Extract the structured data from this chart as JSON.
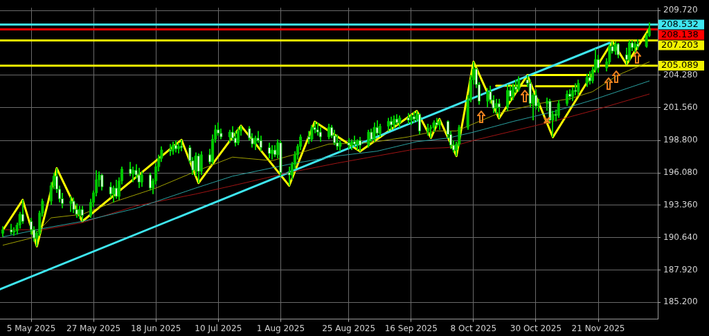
{
  "chart_data": {
    "type": "candlestick",
    "color": "#00c800",
    "colors": [
      "#00c800",
      "#ffffff",
      "#00c800",
      "#00c800",
      "#00c800",
      "#ffffff",
      "#ffffff",
      "#ffffff",
      "#00c800",
      "#00c800",
      "#00c800",
      "#00c800",
      "#00c800",
      "#ffffff",
      "#ffffff",
      "#ffffff",
      "#00c800",
      "#ffffff",
      "#ffffff",
      "#00c800",
      "#ffffff",
      "#00c800",
      "#00c800",
      "#00c800",
      "#00c800",
      "#ffffff",
      "#ffffff",
      "#00c800",
      "#ffffff",
      "#00c800",
      "#00c800",
      "#ffffff",
      "#00c800",
      "#ffffff",
      "#ffffff",
      "#00c800",
      "#ffffff",
      "#00c800",
      "#00c800",
      "#00c800",
      "#00c800",
      "#ffffff",
      "#00c800",
      "#ffffff",
      "#00c800",
      "#ffffff",
      "#ffffff",
      "#ffffff",
      "#00c800",
      "#ffffff",
      "#00c800",
      "#ffffff",
      "#00c800",
      "#00c800",
      "#ffffff",
      "#ffffff",
      "#00c800",
      "#ffffff",
      "#ffffff",
      "#00c800",
      "#00c800",
      "#ffffff",
      "#ffffff",
      "#00c800",
      "#ffffff",
      "#ffffff",
      "#ffffff",
      "#00c800",
      "#ffffff",
      "#00c800",
      "#ffffff",
      "#ffffff",
      "#00c800",
      "#00c800",
      "#00c800",
      "#00c800",
      "#ffffff",
      "#00c800",
      "#ffffff",
      "#ffffff",
      "#ffffff",
      "#00c800",
      "#ffffff",
      "#ffffff",
      "#ffffff",
      "#00c800",
      "#ffffff",
      "#00c800",
      "#ffffff",
      "#00c800",
      "#ffffff",
      "#00c800",
      "#ffffff",
      "#00c800",
      "#ffffff",
      "#00c800",
      "#00c800",
      "#ffffff",
      "#00c800",
      "#ffffff",
      "#00c800",
      "#ffffff",
      "#00c800",
      "#ffffff",
      "#00c800",
      "#ffffff",
      "#00c800",
      "#00c800",
      "#00c800",
      "#ffffff",
      "#00c800",
      "#ffffff",
      "#ffffff",
      "#ffffff",
      "#00c800",
      "#00c800",
      "#00c800",
      "#00c800",
      "#00c800",
      "#ffffff",
      "#ffffff",
      "#00c800",
      "#ffffff",
      "#ffffff",
      "#00c800",
      "#ffffff",
      "#00c800",
      "#ffffff",
      "#00c800",
      "#ffffff",
      "#00c800",
      "#ffffff",
      "#ffffff",
      "#00c800",
      "#ffffff",
      "#00c800",
      "#00c800",
      "#ffffff",
      "#00c800",
      "#ffffff",
      "#00c800",
      "#00c800",
      "#ffffff",
      "#00c800",
      "#ffffff",
      "#00c800",
      "#00c800",
      "#ffffff",
      "#00c800",
      "#00c800",
      "#ffffff",
      "#00c800",
      "#00c800",
      "#ffffff",
      "#00c800",
      "#ffffff",
      "#ffffff",
      "#00c800",
      "#ffffff",
      "#00c800",
      "#ffffff",
      "#00c800",
      "#00c800"
    ],
    "x": [
      "2025-04-25",
      "2025-04-28",
      "2025-04-29",
      "2025-04-30",
      "2025-05-01",
      "2025-05-02",
      "2025-05-05",
      "2025-05-06",
      "2025-05-07",
      "2025-05-08",
      "2025-05-09",
      "2025-05-12",
      "2025-05-13",
      "2025-05-14",
      "2025-05-15",
      "2025-05-16",
      "2025-05-19",
      "2025-05-20",
      "2025-05-21",
      "2025-05-22",
      "2025-05-23",
      "2025-05-26",
      "2025-05-27",
      "2025-05-28",
      "2025-05-29",
      "2025-05-30",
      "2025-06-02",
      "2025-06-03",
      "2025-06-04",
      "2025-06-05",
      "2025-06-06",
      "2025-06-09",
      "2025-06-10",
      "2025-06-11",
      "2025-06-12",
      "2025-06-13",
      "2025-06-16",
      "2025-06-17",
      "2025-06-18",
      "2025-06-19",
      "2025-06-20",
      "2025-06-23",
      "2025-06-24",
      "2025-06-25",
      "2025-06-26",
      "2025-06-27",
      "2025-06-30",
      "2025-07-01",
      "2025-07-02",
      "2025-07-03",
      "2025-07-04",
      "2025-07-07",
      "2025-07-08",
      "2025-07-09",
      "2025-07-10",
      "2025-07-11",
      "2025-07-14",
      "2025-07-15",
      "2025-07-16",
      "2025-07-17",
      "2025-07-18",
      "2025-07-21",
      "2025-07-22",
      "2025-07-23",
      "2025-07-24",
      "2025-07-25",
      "2025-07-28",
      "2025-07-29",
      "2025-07-30",
      "2025-07-31",
      "2025-08-01",
      "2025-08-04",
      "2025-08-05",
      "2025-08-06",
      "2025-08-07",
      "2025-08-08",
      "2025-08-11",
      "2025-08-12",
      "2025-08-13",
      "2025-08-14",
      "2025-08-15",
      "2025-08-18",
      "2025-08-19",
      "2025-08-20",
      "2025-08-21",
      "2025-08-22",
      "2025-08-25",
      "2025-08-26",
      "2025-08-27",
      "2025-08-28",
      "2025-08-29",
      "2025-09-01",
      "2025-09-02",
      "2025-09-03",
      "2025-09-04",
      "2025-09-05",
      "2025-09-08",
      "2025-09-09",
      "2025-09-10",
      "2025-09-11",
      "2025-09-12",
      "2025-09-15",
      "2025-09-16",
      "2025-09-17",
      "2025-09-18",
      "2025-09-19",
      "2025-09-22",
      "2025-09-23",
      "2025-09-24",
      "2025-09-25",
      "2025-09-26",
      "2025-09-29",
      "2025-09-30",
      "2025-10-01",
      "2025-10-02",
      "2025-10-03",
      "2025-10-06",
      "2025-10-07",
      "2025-10-08",
      "2025-10-09",
      "2025-10-10",
      "2025-10-13",
      "2025-10-14",
      "2025-10-15",
      "2025-10-16",
      "2025-10-17",
      "2025-10-20",
      "2025-10-21",
      "2025-10-22",
      "2025-10-23",
      "2025-10-24",
      "2025-10-27",
      "2025-10-28",
      "2025-10-29",
      "2025-10-30",
      "2025-10-31",
      "2025-11-03",
      "2025-11-04",
      "2025-11-05",
      "2025-11-06",
      "2025-11-07",
      "2025-11-10",
      "2025-11-11",
      "2025-11-12",
      "2025-11-13",
      "2025-11-14",
      "2025-11-17",
      "2025-11-18",
      "2025-11-19",
      "2025-11-20",
      "2025-11-21",
      "2025-11-24",
      "2025-11-25",
      "2025-11-26",
      "2025-11-27",
      "2025-11-28",
      "2025-12-01",
      "2025-12-02",
      "2025-12-03",
      "2025-12-04",
      "2025-12-05",
      "2025-12-08",
      "2025-12-09"
    ],
    "ohlc": [
      [
        191.0,
        191.6,
        190.7,
        191.3
      ],
      [
        191.3,
        191.8,
        190.9,
        191.1
      ],
      [
        191.1,
        191.5,
        190.8,
        191.2
      ],
      [
        191.2,
        191.9,
        190.9,
        191.7
      ],
      [
        191.7,
        192.8,
        191.4,
        192.6
      ],
      [
        192.6,
        193.81,
        191.8,
        192.0
      ],
      [
        192.0,
        192.3,
        190.9,
        191.3
      ],
      [
        191.3,
        191.6,
        190.3,
        190.6
      ],
      [
        190.6,
        191.2,
        189.9,
        191.0
      ],
      [
        191.0,
        192.9,
        190.8,
        192.7
      ],
      [
        192.7,
        193.9,
        192.4,
        193.7
      ],
      [
        193.7,
        195.3,
        193.4,
        195.0
      ],
      [
        195.0,
        196.1,
        194.7,
        195.8
      ],
      [
        195.8,
        196.47,
        194.4,
        194.7
      ],
      [
        194.7,
        195.0,
        193.6,
        193.9
      ],
      [
        193.9,
        194.4,
        193.1,
        193.5
      ],
      [
        193.5,
        194.1,
        192.8,
        193.7
      ],
      [
        193.7,
        194.0,
        192.7,
        193.0
      ],
      [
        193.0,
        193.5,
        192.3,
        192.6
      ],
      [
        192.6,
        193.3,
        192.2,
        193.0
      ],
      [
        193.0,
        193.3,
        192.0,
        192.5
      ],
      [
        192.5,
        193.9,
        192.3,
        193.6
      ],
      [
        193.6,
        194.6,
        193.2,
        194.4
      ],
      [
        194.4,
        196.3,
        194.1,
        195.5
      ],
      [
        195.5,
        196.2,
        194.9,
        195.9
      ],
      [
        195.9,
        196.0,
        194.6,
        194.9
      ],
      [
        194.9,
        195.3,
        194.0,
        194.3
      ],
      [
        194.3,
        195.0,
        193.6,
        194.8
      ],
      [
        194.8,
        195.5,
        193.9,
        194.1
      ],
      [
        194.1,
        195.7,
        193.8,
        195.4
      ],
      [
        195.4,
        196.6,
        195.1,
        196.4
      ],
      [
        196.4,
        197.0,
        195.8,
        196.0
      ],
      [
        196.0,
        196.6,
        195.3,
        196.3
      ],
      [
        196.3,
        196.8,
        195.6,
        195.9
      ],
      [
        195.9,
        196.5,
        194.8,
        195.3
      ],
      [
        195.3,
        196.2,
        194.9,
        195.9
      ],
      [
        195.9,
        196.1,
        194.6,
        194.8
      ],
      [
        194.8,
        195.6,
        194.3,
        195.4
      ],
      [
        195.4,
        196.9,
        195.1,
        196.6
      ],
      [
        196.6,
        197.6,
        196.2,
        197.3
      ],
      [
        197.3,
        198.3,
        197.0,
        198.0
      ],
      [
        198.0,
        198.5,
        197.5,
        197.9
      ],
      [
        197.9,
        198.7,
        197.6,
        198.4
      ],
      [
        198.4,
        198.8,
        197.8,
        198.1
      ],
      [
        198.1,
        198.6,
        197.7,
        198.3
      ],
      [
        198.3,
        198.85,
        197.9,
        198.2
      ],
      [
        198.2,
        198.4,
        196.9,
        197.1
      ],
      [
        197.1,
        197.4,
        195.9,
        196.3
      ],
      [
        196.3,
        197.8,
        195.8,
        197.5
      ],
      [
        197.5,
        197.7,
        195.22,
        196.2
      ],
      [
        196.2,
        197.9,
        195.9,
        197.6
      ],
      [
        197.6,
        198.1,
        196.8,
        197.0
      ],
      [
        197.0,
        199.3,
        196.8,
        198.9
      ],
      [
        198.9,
        200.1,
        198.6,
        199.7
      ],
      [
        199.7,
        200.3,
        199.2,
        199.4
      ],
      [
        199.4,
        199.8,
        198.9,
        199.1
      ],
      [
        199.1,
        199.7,
        198.6,
        199.5
      ],
      [
        199.5,
        200.0,
        198.8,
        199.0
      ],
      [
        199.0,
        199.6,
        198.3,
        198.6
      ],
      [
        198.6,
        199.9,
        198.4,
        199.6
      ],
      [
        199.6,
        200.04,
        199.2,
        199.8
      ],
      [
        199.8,
        200.0,
        198.8,
        199.0
      ],
      [
        199.0,
        199.4,
        198.2,
        198.5
      ],
      [
        198.5,
        199.2,
        198.0,
        199.0
      ],
      [
        199.0,
        199.6,
        198.6,
        198.8
      ],
      [
        198.8,
        199.2,
        197.9,
        198.2
      ],
      [
        198.2,
        198.6,
        197.3,
        197.7
      ],
      [
        197.7,
        198.4,
        197.2,
        198.0
      ],
      [
        198.0,
        198.4,
        197.4,
        197.6
      ],
      [
        197.6,
        198.9,
        197.3,
        198.6
      ],
      [
        198.6,
        198.8,
        195.8,
        196.1
      ],
      [
        196.1,
        196.6,
        195.0,
        195.9
      ],
      [
        195.9,
        197.0,
        195.5,
        196.8
      ],
      [
        196.8,
        197.9,
        196.4,
        197.6
      ],
      [
        197.6,
        198.5,
        197.2,
        198.3
      ],
      [
        198.3,
        199.3,
        198.0,
        199.1
      ],
      [
        199.1,
        199.6,
        198.5,
        198.9
      ],
      [
        198.9,
        200.1,
        198.7,
        199.9
      ],
      [
        199.9,
        200.38,
        199.4,
        199.7
      ],
      [
        199.7,
        200.3,
        199.2,
        199.5
      ],
      [
        199.5,
        199.9,
        198.7,
        199.1
      ],
      [
        199.1,
        200.2,
        198.9,
        199.9
      ],
      [
        199.9,
        200.1,
        199.0,
        199.2
      ],
      [
        199.2,
        199.7,
        198.4,
        198.6
      ],
      [
        198.6,
        199.3,
        198.0,
        198.3
      ],
      [
        198.3,
        198.8,
        197.9,
        198.6
      ],
      [
        198.6,
        199.0,
        198.1,
        198.4
      ],
      [
        198.4,
        198.9,
        198.0,
        198.7
      ],
      [
        198.7,
        199.2,
        198.3,
        198.5
      ],
      [
        198.5,
        198.9,
        198.0,
        198.8
      ],
      [
        198.8,
        199.1,
        197.88,
        198.4
      ],
      [
        198.4,
        199.7,
        198.2,
        199.5
      ],
      [
        199.5,
        199.8,
        198.7,
        198.9
      ],
      [
        198.9,
        200.3,
        198.7,
        199.9
      ],
      [
        199.9,
        200.5,
        199.2,
        199.4
      ],
      [
        199.4,
        200.2,
        199.1,
        200.0
      ],
      [
        200.0,
        200.7,
        199.6,
        200.4
      ],
      [
        200.4,
        200.8,
        199.7,
        200.1
      ],
      [
        200.1,
        200.9,
        199.8,
        200.6
      ],
      [
        200.6,
        201.0,
        200.1,
        200.3
      ],
      [
        200.3,
        200.9,
        199.9,
        200.7
      ],
      [
        200.7,
        201.1,
        200.2,
        200.5
      ],
      [
        200.5,
        201.0,
        200.1,
        200.8
      ],
      [
        200.8,
        201.2,
        200.3,
        200.6
      ],
      [
        200.6,
        201.28,
        200.4,
        201.0
      ],
      [
        201.0,
        201.1,
        199.3,
        199.6
      ],
      [
        199.6,
        200.2,
        199.2,
        199.8
      ],
      [
        199.8,
        200.1,
        199.02,
        199.9
      ],
      [
        199.9,
        200.5,
        199.5,
        200.3
      ],
      [
        200.3,
        200.7,
        199.9,
        200.1
      ],
      [
        200.1,
        200.6,
        199.7,
        200.4
      ],
      [
        200.4,
        200.5,
        199.0,
        199.3
      ],
      [
        199.3,
        199.6,
        198.1,
        198.4
      ],
      [
        198.4,
        198.8,
        197.8,
        198.0
      ],
      [
        198.0,
        198.7,
        197.49,
        198.5
      ],
      [
        198.5,
        200.1,
        198.3,
        199.9
      ],
      [
        199.9,
        202.6,
        199.7,
        202.2
      ],
      [
        202.2,
        204.3,
        202.0,
        203.9
      ],
      [
        203.9,
        205.42,
        203.5,
        204.8
      ],
      [
        204.8,
        204.9,
        203.2,
        203.5
      ],
      [
        203.5,
        203.7,
        201.8,
        202.1
      ],
      [
        202.1,
        203.2,
        201.6,
        202.9
      ],
      [
        202.9,
        203.4,
        201.9,
        202.2
      ],
      [
        202.2,
        202.6,
        201.1,
        201.5
      ],
      [
        201.5,
        202.3,
        201.0,
        201.9
      ],
      [
        201.9,
        202.3,
        200.66,
        201.6
      ],
      [
        201.6,
        203.5,
        201.3,
        203.0
      ],
      [
        203.0,
        203.4,
        202.1,
        202.5
      ],
      [
        202.5,
        203.6,
        202.2,
        203.3
      ],
      [
        203.3,
        203.9,
        202.8,
        203.1
      ],
      [
        203.1,
        204.2,
        202.9,
        203.9
      ],
      [
        203.9,
        204.28,
        203.3,
        203.6
      ],
      [
        203.6,
        203.9,
        201.6,
        201.9
      ],
      [
        201.9,
        202.8,
        200.5,
        202.6
      ],
      [
        202.6,
        203.1,
        201.4,
        201.7
      ],
      [
        201.7,
        202.3,
        201.2,
        201.9
      ],
      [
        201.9,
        202.4,
        201.3,
        202.1
      ],
      [
        202.1,
        202.3,
        200.2,
        200.5
      ],
      [
        200.5,
        201.3,
        199.07,
        201.0
      ],
      [
        201.0,
        201.4,
        200.4,
        200.9
      ],
      [
        200.9,
        202.2,
        200.7,
        201.9
      ],
      [
        201.9,
        203.0,
        201.7,
        202.7
      ],
      [
        202.7,
        203.1,
        202.2,
        202.5
      ],
      [
        202.5,
        203.3,
        202.1,
        203.0
      ],
      [
        203.0,
        203.6,
        202.6,
        202.9
      ],
      [
        202.9,
        203.9,
        202.6,
        203.6
      ],
      [
        203.6,
        204.4,
        203.3,
        204.1
      ],
      [
        204.1,
        204.6,
        203.5,
        203.8
      ],
      [
        203.8,
        205.0,
        203.6,
        204.7
      ],
      [
        204.7,
        206.5,
        204.5,
        205.6
      ],
      [
        205.6,
        206.0,
        204.5,
        204.9
      ],
      [
        204.9,
        205.7,
        204.6,
        205.4
      ],
      [
        205.4,
        206.9,
        205.2,
        206.7
      ],
      [
        206.7,
        207.12,
        206.1,
        206.3
      ],
      [
        206.3,
        207.1,
        206.0,
        206.9
      ],
      [
        206.9,
        207.0,
        205.7,
        206.0
      ],
      [
        206.0,
        206.6,
        205.19,
        205.6
      ],
      [
        205.6,
        207.2,
        205.4,
        207.0
      ],
      [
        207.0,
        207.2,
        206.3,
        206.6
      ],
      [
        206.6,
        207.1,
        206.2,
        206.9
      ],
      [
        206.9,
        207.3,
        206.4,
        206.7
      ],
      [
        206.7,
        207.8,
        206.6,
        207.6
      ],
      [
        207.6,
        208.72,
        207.5,
        208.2
      ]
    ],
    "series": [
      {
        "type": "line",
        "color": "#a0a000",
        "x": [
          "2025-04-25",
          "2025-05-05",
          "2025-05-12",
          "2025-05-23",
          "2025-06-04",
          "2025-06-18",
          "2025-07-02",
          "2025-07-15",
          "2025-07-29",
          "2025-08-07",
          "2025-08-18",
          "2025-09-01",
          "2025-09-15",
          "2025-09-25",
          "2025-10-02",
          "2025-10-08",
          "2025-10-17",
          "2025-10-31",
          "2025-11-11",
          "2025-11-19",
          "2025-11-28",
          "2025-12-09"
        ],
        "values": [
          190.0,
          190.6,
          192.3,
          192.6,
          193.7,
          194.8,
          196.2,
          197.4,
          197.1,
          197.7,
          198.5,
          198.6,
          199.1,
          199.6,
          199.6,
          200.2,
          201.1,
          201.9,
          202.3,
          202.9,
          204.3,
          205.4
        ]
      },
      {
        "type": "line",
        "color": "#2aa0a0",
        "x": [
          "2025-04-25",
          "2025-05-09",
          "2025-05-23",
          "2025-06-11",
          "2025-07-02",
          "2025-07-15",
          "2025-08-04",
          "2025-08-21",
          "2025-09-04",
          "2025-09-18",
          "2025-09-29",
          "2025-10-08",
          "2025-10-22",
          "2025-11-05",
          "2025-11-19",
          "2025-12-09"
        ],
        "values": [
          190.7,
          191.4,
          192.0,
          193.1,
          194.8,
          195.8,
          196.8,
          197.5,
          197.9,
          198.7,
          199.0,
          199.5,
          200.4,
          201.2,
          202.2,
          203.8
        ]
      },
      {
        "type": "line",
        "color": "#a01414",
        "x": [
          "2025-04-25",
          "2025-05-09",
          "2025-05-23",
          "2025-06-11",
          "2025-07-02",
          "2025-07-15",
          "2025-08-04",
          "2025-08-21",
          "2025-09-04",
          "2025-09-18",
          "2025-09-29",
          "2025-10-08",
          "2025-10-22",
          "2025-11-05",
          "2025-11-19",
          "2025-12-09"
        ],
        "values": [
          191.3,
          191.3,
          191.9,
          193.3,
          194.3,
          195.0,
          196.1,
          196.9,
          197.5,
          198.1,
          198.2,
          198.8,
          199.6,
          200.4,
          201.3,
          202.7
        ]
      },
      {
        "type": "line",
        "color": "#3ee6f0",
        "x": [
          "2025-04-24",
          "2025-11-25"
        ],
        "values": [
          186.3,
          207.0
        ]
      },
      {
        "type": "line",
        "color": "#ffff00",
        "x": [
          "2025-04-25",
          "2025-05-02",
          "2025-05-07",
          "2025-05-14",
          "2025-05-23",
          "2025-06-27",
          "2025-07-03",
          "2025-07-18",
          "2025-08-04",
          "2025-08-13",
          "2025-08-29",
          "2025-09-18",
          "2025-09-23",
          "2025-09-26",
          "2025-10-02",
          "2025-10-08",
          "2025-10-17",
          "2025-10-27",
          "2025-11-05",
          "2025-11-26",
          "2025-12-01",
          "2025-12-09"
        ],
        "values": [
          191.26,
          193.81,
          189.9,
          196.47,
          192.0,
          198.85,
          195.22,
          200.04,
          195.0,
          200.38,
          197.88,
          201.28,
          199.02,
          200.6,
          197.49,
          205.42,
          200.66,
          204.28,
          199.07,
          207.12,
          205.19,
          208.2
        ]
      },
      {
        "type": "line",
        "color": "#ffff00",
        "x": [
          "2025-10-16",
          "2025-10-27"
        ],
        "values": [
          203.4,
          203.4
        ]
      },
      {
        "type": "line",
        "color": "#ffff00",
        "x": [
          "2025-10-27",
          "2025-11-19"
        ],
        "values": [
          204.3,
          204.3
        ]
      },
      {
        "type": "line",
        "color": "#ffff00",
        "x": [
          "2025-10-30",
          "2025-11-14"
        ],
        "values": [
          203.35,
          203.35
        ]
      }
    ],
    "ref_lines": [
      {
        "axis": "y",
        "value": 208.532,
        "label": "208.532",
        "color": "#3ee6f0"
      },
      {
        "axis": "y",
        "value": 208.138,
        "label": "208.138",
        "color": "#ff0000"
      },
      {
        "axis": "y",
        "value": 207.203,
        "label": "207.203",
        "color": "#f2f200"
      },
      {
        "axis": "y",
        "value": 205.089,
        "label": "205.089",
        "color": "#f2f200"
      }
    ],
    "xlim": [
      "2025-04-24",
      "2025-12-12"
    ],
    "xticks": [
      {
        "value": "2025-05-05",
        "label": "5 May 2025"
      },
      {
        "value": "2025-05-27",
        "label": "27 May 2025"
      },
      {
        "value": "2025-06-18",
        "label": "18 Jun 2025"
      },
      {
        "value": "2025-07-10",
        "label": "10 Jul 2025"
      },
      {
        "value": "2025-08-01",
        "label": "1 Aug 2025"
      },
      {
        "value": "2025-08-25",
        "label": "25 Aug 2025"
      },
      {
        "value": "2025-09-16",
        "label": "16 Sep 2025"
      },
      {
        "value": "2025-10-08",
        "label": "8 Oct 2025"
      },
      {
        "value": "2025-10-30",
        "label": "30 Oct 2025"
      },
      {
        "value": "2025-11-21",
        "label": "21 Nov 2025"
      }
    ],
    "ylim": [
      183.79,
      209.95
    ],
    "yticks": [
      {
        "value": 185.2,
        "label": "185.200"
      },
      {
        "value": 187.92,
        "label": "187.920"
      },
      {
        "value": 190.64,
        "label": "190.640"
      },
      {
        "value": 193.36,
        "label": "193.360"
      },
      {
        "value": 196.08,
        "label": "196.080"
      },
      {
        "value": 198.8,
        "label": "198.800"
      },
      {
        "value": 201.56,
        "label": "201.560"
      },
      {
        "value": 204.28,
        "label": "204.280"
      },
      {
        "value": 209.72,
        "label": "209.720"
      }
    ],
    "grid": true,
    "legend": false
  }
}
